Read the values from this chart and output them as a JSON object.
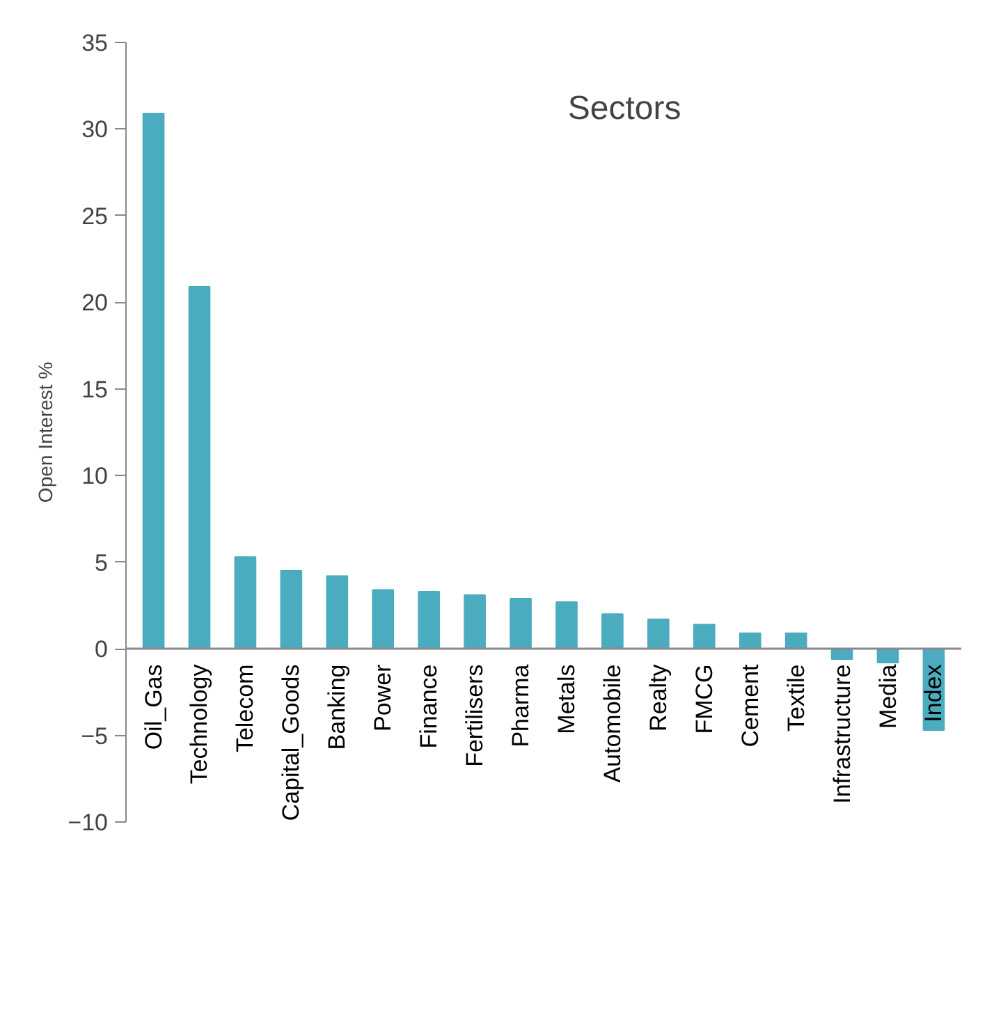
{
  "chart_data": {
    "type": "bar",
    "title": "Sectors",
    "ylabel": "Open Interest %",
    "categories": [
      "Oil_Gas",
      "Technology",
      "Telecom",
      "Capital_Goods",
      "Banking",
      "Power",
      "Finance",
      "Fertilisers",
      "Pharma",
      "Metals",
      "Automobile",
      "Realty",
      "FMCG",
      "Cement",
      "Textile",
      "Infrastructure",
      "Media",
      "Index"
    ],
    "values": [
      30.9,
      20.9,
      5.3,
      4.5,
      4.2,
      3.4,
      3.3,
      3.1,
      2.9,
      2.7,
      2.0,
      1.7,
      1.4,
      0.9,
      0.9,
      -0.6,
      -0.8,
      -4.7
    ],
    "color": "#4bacc0",
    "ylim": [
      -10,
      35
    ],
    "yticks": [
      -10,
      -5,
      0,
      5,
      10,
      15,
      20,
      25,
      30,
      35
    ],
    "grid": false
  }
}
